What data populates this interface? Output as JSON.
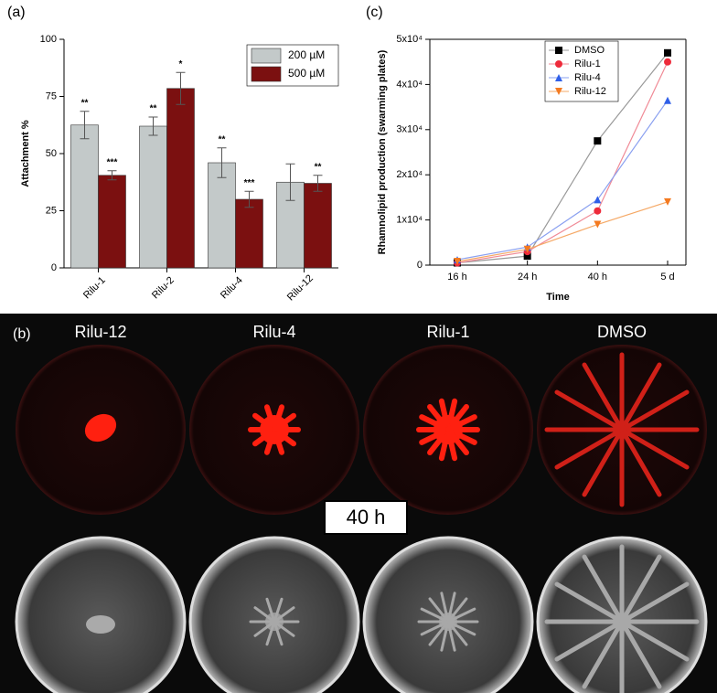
{
  "chart_data": [
    {
      "type": "bar",
      "panel_label": "(a)",
      "y_label": "Attachment %",
      "categories": [
        "Rilu-1",
        "Rilu-2",
        "Rilu-4",
        "Rilu-12"
      ],
      "series": [
        {
          "name": "200 µM",
          "color": "#c3c9c9",
          "values": [
            62.5,
            62,
            46,
            37.5
          ],
          "errors": [
            6,
            4,
            6.5,
            8
          ],
          "annotations": [
            "**",
            "**",
            "**",
            null
          ]
        },
        {
          "name": "500 µM",
          "color": "#7b1010",
          "values": [
            40.5,
            78.5,
            30,
            37
          ],
          "errors": [
            2,
            7,
            3.5,
            3.5
          ],
          "annotations": [
            "***",
            "*",
            "***",
            "**"
          ]
        }
      ],
      "ylim": [
        0,
        100
      ],
      "yticks": [
        0,
        25,
        50,
        75,
        100
      ],
      "legend": "top-right"
    },
    {
      "type": "line",
      "panel_label": "(c)",
      "y_label": "Rhamnolipid production (swarming plates)",
      "x_label": "Time",
      "categories": [
        "16 h",
        "24 h",
        "40 h",
        "5 d"
      ],
      "series": [
        {
          "name": "DMSO",
          "color": "#000000",
          "marker": "square",
          "line_color": "#999999",
          "values": [
            500,
            2000,
            27500,
            47000
          ]
        },
        {
          "name": "Rilu-1",
          "color": "#ee2a3a",
          "marker": "circle",
          "line_color": "#f08a96",
          "values": [
            500,
            3000,
            12000,
            45000
          ]
        },
        {
          "name": "Rilu-4",
          "color": "#2f5fe8",
          "marker": "triangle",
          "line_color": "#8aa0f0",
          "values": [
            1200,
            4000,
            14500,
            36500
          ]
        },
        {
          "name": "Rilu-12",
          "color": "#f47a20",
          "marker": "triangle-down",
          "line_color": "#f5a865",
          "values": [
            800,
            3500,
            9000,
            14000
          ]
        }
      ],
      "ylim": [
        0,
        50000
      ],
      "yticks": [
        0,
        {
          "value": 10000,
          "label": "1x10⁴"
        },
        {
          "value": 20000,
          "label": "2x10⁴"
        },
        {
          "value": 30000,
          "label": "3x10⁴"
        },
        {
          "value": 40000,
          "label": "4x10⁴"
        },
        {
          "value": 50000,
          "label": "5x10⁴"
        }
      ],
      "legend": "top-right"
    }
  ],
  "photo_panel": {
    "panel_label": "(b)",
    "columns": [
      "Rilu-12",
      "Rilu-4",
      "Rilu-1",
      "DMSO"
    ],
    "time_label": "40 h"
  }
}
